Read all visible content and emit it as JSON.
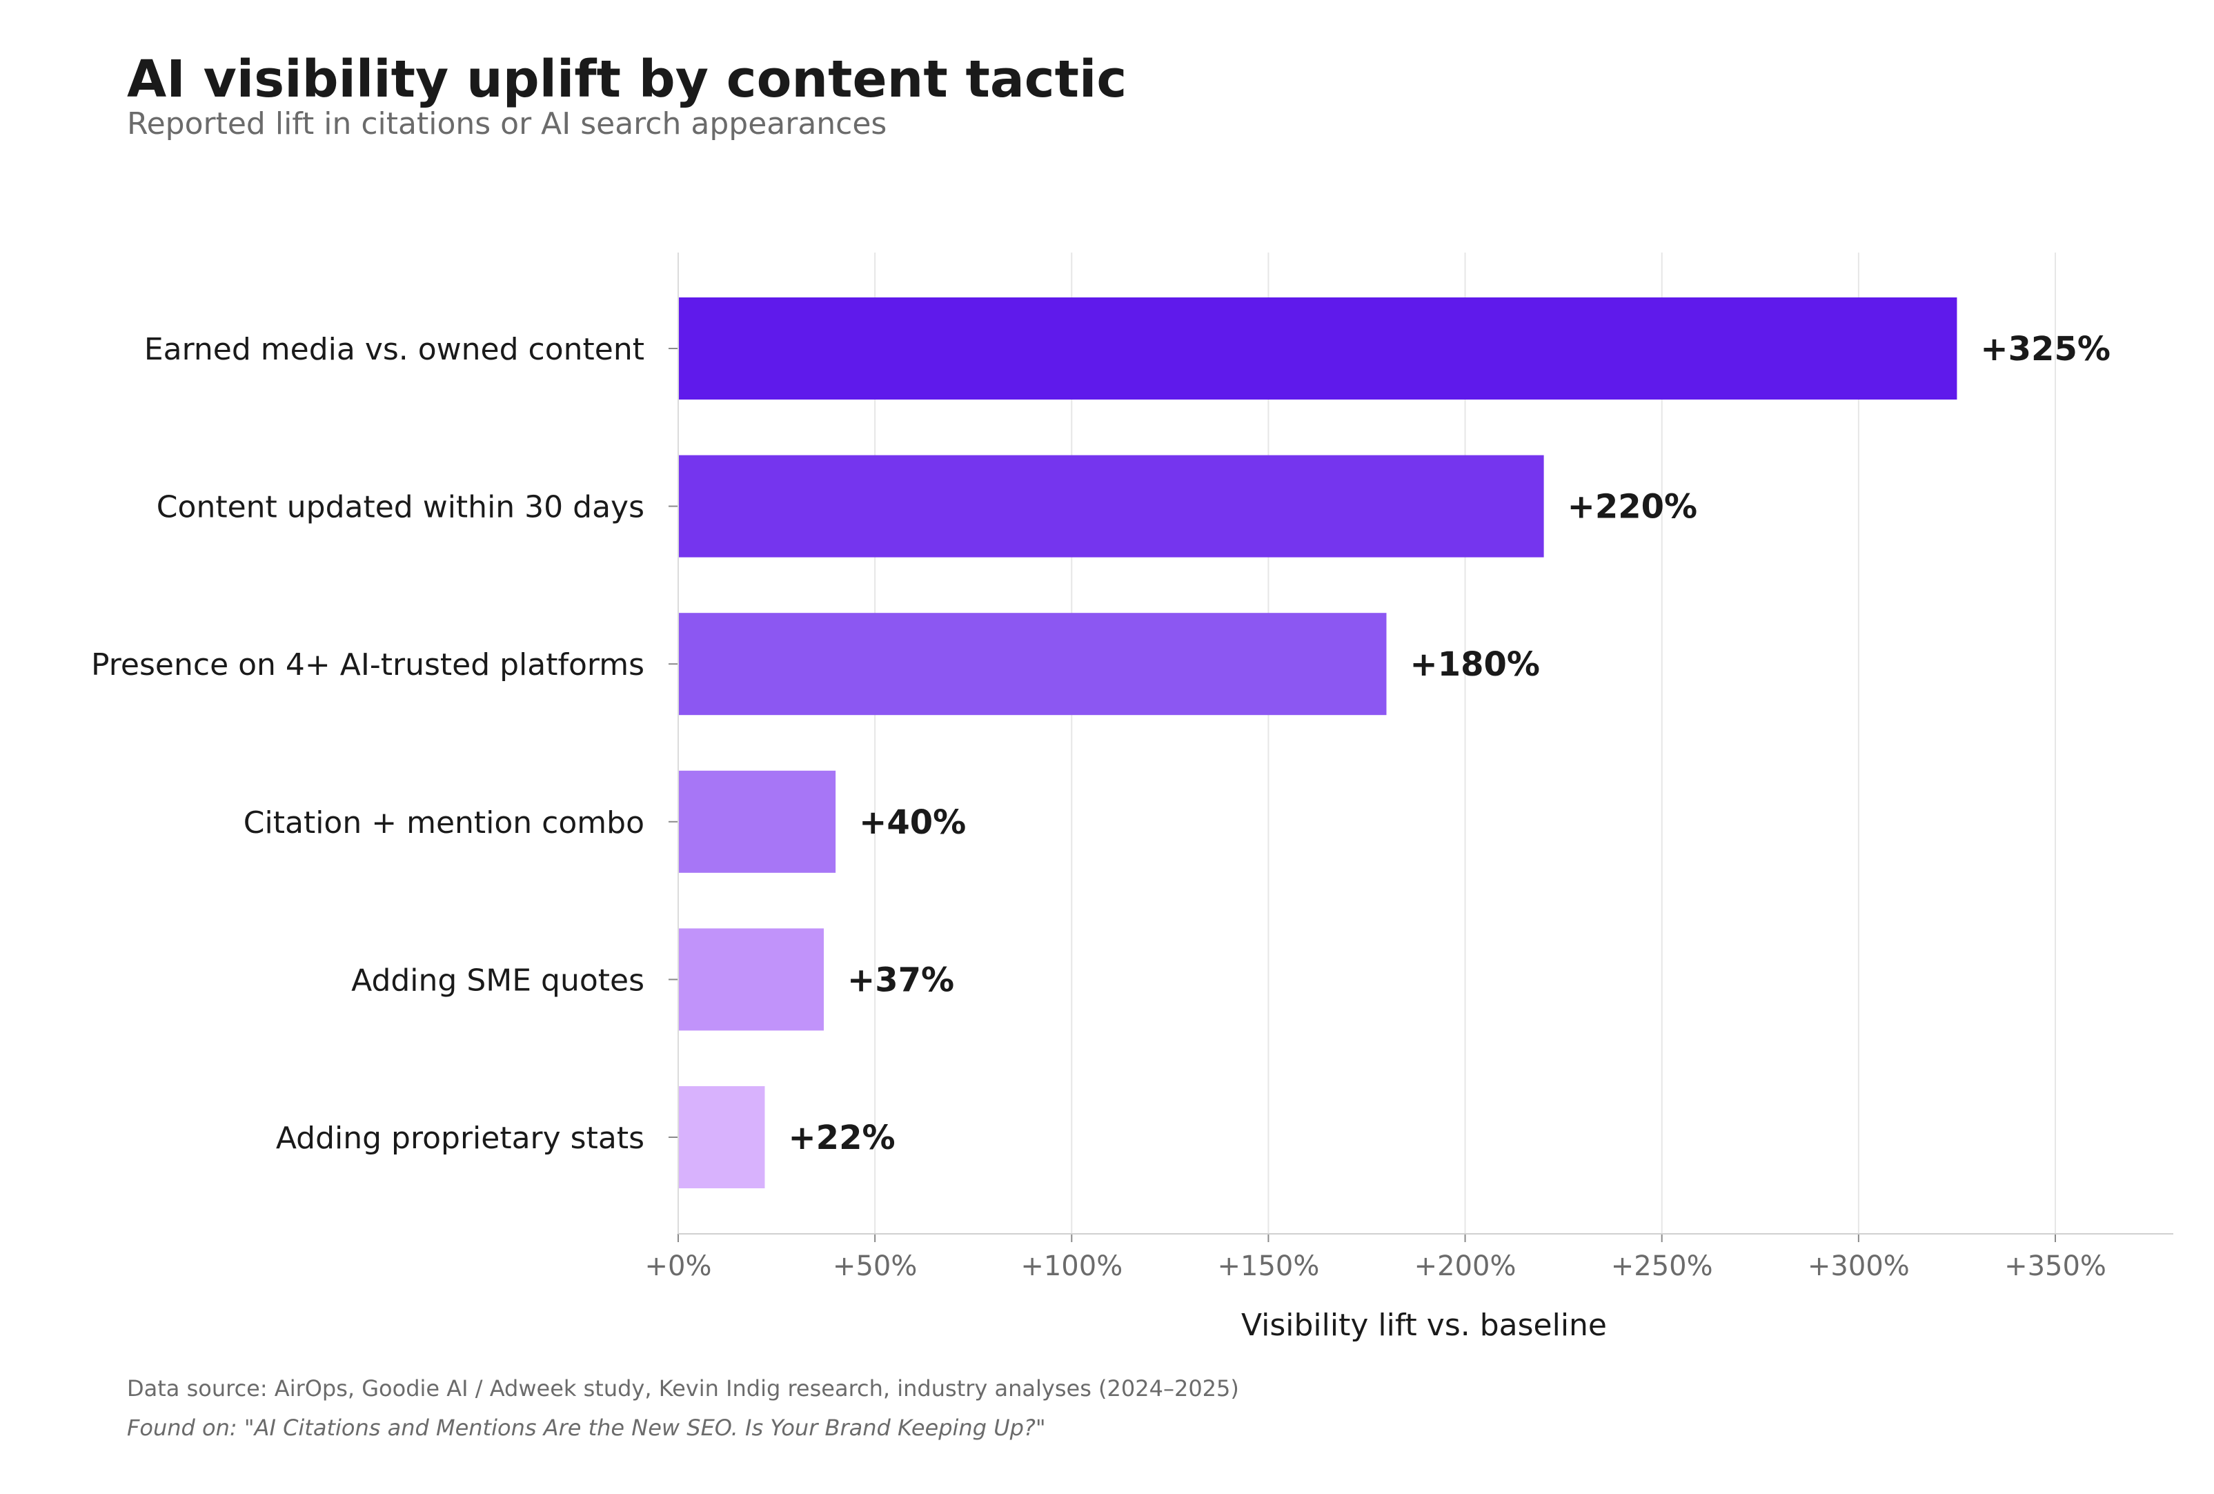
{
  "header": {
    "title": "AI visibility uplift by content tactic",
    "subtitle": "Reported lift in citations or AI search appearances"
  },
  "footer": {
    "source": "Data source: AirOps, Goodie AI / Adweek study, Kevin Indig research, industry analyses (2024–2025)",
    "found_on": "Found on: \"AI Citations and Mentions Are the New SEO. Is Your Brand Keeping Up?\""
  },
  "chart_data": {
    "type": "bar",
    "orientation": "horizontal",
    "title": "AI visibility uplift by content tactic",
    "subtitle": "Reported lift in citations or AI search appearances",
    "xlabel": "Visibility lift vs. baseline",
    "ylabel": "",
    "xlim": [
      0,
      380
    ],
    "x_ticks": [
      0,
      50,
      100,
      150,
      200,
      250,
      300,
      350
    ],
    "x_tick_labels": [
      "+0%",
      "+50%",
      "+100%",
      "+150%",
      "+200%",
      "+250%",
      "+300%",
      "+350%"
    ],
    "grid": "vertical",
    "legend": "none",
    "categories": [
      "Earned media vs. owned content",
      "Content updated within 30 days",
      "Presence on 4+ AI-trusted platforms",
      "Citation + mention combo",
      "Adding SME quotes",
      "Adding proprietary stats"
    ],
    "values": [
      325,
      220,
      180,
      40,
      37,
      22
    ],
    "value_labels": [
      "+325%",
      "+220%",
      "+180%",
      "+40%",
      "+37%",
      "+22%"
    ],
    "colors": [
      "#5f1aeb",
      "#7535ee",
      "#8c57f2",
      "#a776f6",
      "#c193fa",
      "#d8b2fd"
    ]
  }
}
